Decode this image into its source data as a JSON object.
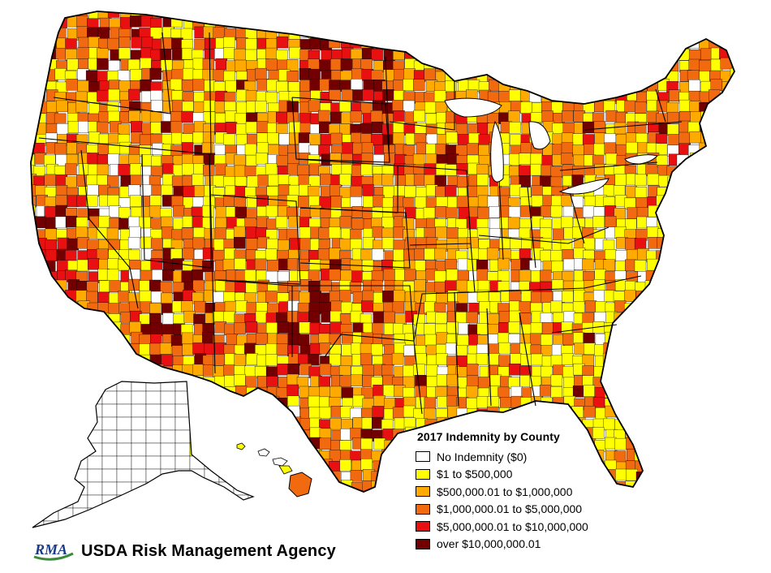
{
  "legend": {
    "title": "2017 Indemnity by County",
    "items": [
      {
        "label": "No Indemnity ($0)",
        "color": "#ffffff"
      },
      {
        "label": "$1 to $500,000",
        "color": "#ffff00"
      },
      {
        "label": "$500,000.01 to $1,000,000",
        "color": "#ffaa00"
      },
      {
        "label": "$1,000,000.01 to $5,000,000",
        "color": "#f26a10"
      },
      {
        "label": "$5,000,000.01 to $10,000,000",
        "color": "#e81010"
      },
      {
        "label": "over $10,000,000.01",
        "color": "#730000"
      }
    ]
  },
  "branding": {
    "logo_text": "RMA",
    "agency_name": "USDA Risk Management Agency",
    "logo_color": "#1a3a8a",
    "logo_accent": "#3a8a3a"
  }
}
